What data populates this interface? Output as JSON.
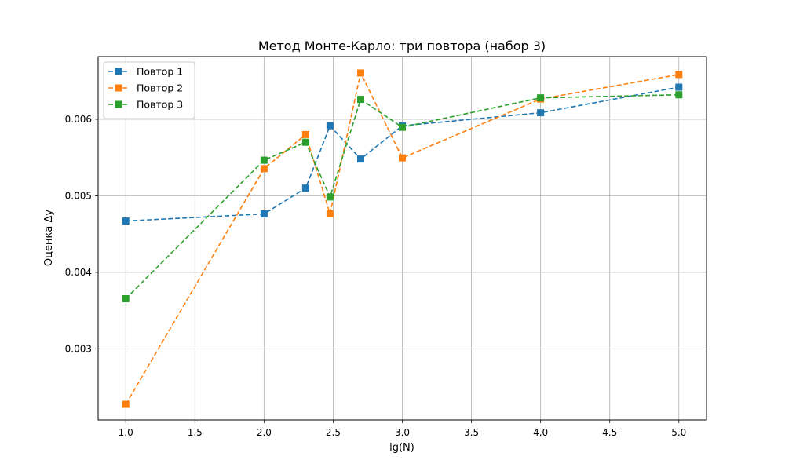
{
  "chart_data": {
    "type": "line",
    "title": "Метод Монте-Карло: три повтора (набор 3)",
    "xlabel": "lg(N)",
    "ylabel": "Оценка Δy",
    "xlim": [
      0.8,
      5.2
    ],
    "ylim": [
      0.00207,
      0.00682
    ],
    "xticks": [
      1.0,
      1.5,
      2.0,
      2.5,
      3.0,
      3.5,
      4.0,
      4.5,
      5.0
    ],
    "xtick_labels": [
      "1.0",
      "1.5",
      "2.0",
      "2.5",
      "3.0",
      "3.5",
      "4.0",
      "4.5",
      "5.0"
    ],
    "yticks": [
      0.003,
      0.004,
      0.005,
      0.006
    ],
    "ytick_labels": [
      "0.003",
      "0.004",
      "0.005",
      "0.006"
    ],
    "grid": true,
    "legend_position": "top-left",
    "x": [
      1.0,
      2.0,
      2.301,
      2.477,
      2.699,
      3.0,
      4.0,
      5.0
    ],
    "series": [
      {
        "name": "Повтор 1",
        "color": "#1f77b4",
        "marker": "square",
        "line_style": "dashed",
        "values": [
          0.00467,
          0.004763,
          0.0051,
          0.005915,
          0.00548,
          0.005915,
          0.006085,
          0.00642
        ]
      },
      {
        "name": "Повтор 2",
        "color": "#ff7f0e",
        "marker": "square",
        "line_style": "dashed",
        "values": [
          0.002275,
          0.005355,
          0.0058,
          0.004765,
          0.006605,
          0.005495,
          0.006265,
          0.006585
        ]
      },
      {
        "name": "Повтор 3",
        "color": "#2ca02c",
        "marker": "square",
        "line_style": "dashed",
        "values": [
          0.003655,
          0.005465,
          0.0057,
          0.004985,
          0.00626,
          0.005895,
          0.00628,
          0.00632
        ]
      }
    ]
  }
}
